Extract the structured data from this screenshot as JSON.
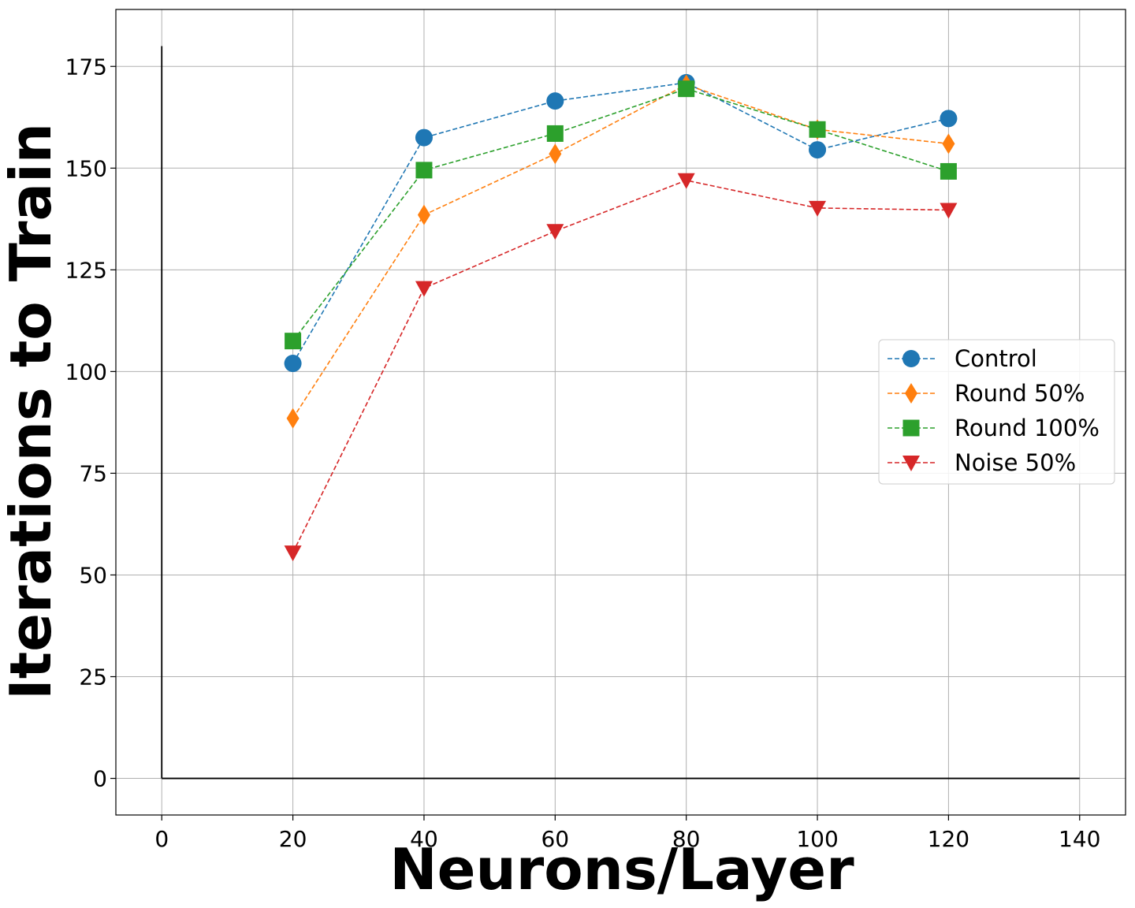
{
  "chart_data": {
    "type": "line",
    "title": "",
    "xlabel": "Neurons/Layer",
    "ylabel": "Iterations to Train",
    "xlim": [
      -7,
      147
    ],
    "ylim": [
      -9,
      189
    ],
    "xticks": [
      0,
      20,
      40,
      60,
      80,
      100,
      120,
      140
    ],
    "yticks": [
      0,
      25,
      50,
      75,
      100,
      125,
      150,
      175
    ],
    "grid": true,
    "legend_position": "center-right",
    "reference_lines": [
      {
        "x": [
          0,
          0
        ],
        "y": [
          0,
          180
        ]
      },
      {
        "x": [
          0,
          140
        ],
        "y": [
          0,
          0
        ]
      }
    ],
    "x": [
      20,
      40,
      60,
      80,
      100,
      120
    ],
    "series": [
      {
        "name": "Control",
        "values": [
          102,
          157.5,
          166.5,
          171,
          154.5,
          162.2
        ],
        "color": "#1f77b4",
        "marker": "circle"
      },
      {
        "name": "Round 50%",
        "values": [
          88.5,
          138.5,
          153.5,
          170.5,
          159.5,
          156
        ],
        "color": "#ff7f0e",
        "marker": "diamond"
      },
      {
        "name": "Round 100%",
        "values": [
          107.5,
          149.5,
          158.5,
          169.5,
          159.5,
          149.2
        ],
        "color": "#2ca02c",
        "marker": "square"
      },
      {
        "name": "Noise 50%",
        "values": [
          55.5,
          120.5,
          134.5,
          147,
          140.2,
          139.7
        ],
        "color": "#d62728",
        "marker": "triangle-down"
      }
    ]
  }
}
